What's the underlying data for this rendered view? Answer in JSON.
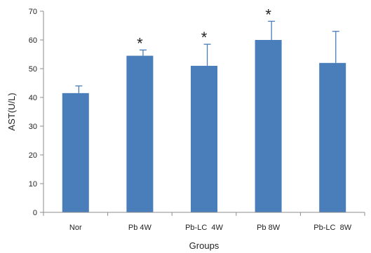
{
  "chart_data": {
    "type": "bar",
    "xlabel": "Groups",
    "ylabel": "AST(U/L)",
    "ylim": [
      0,
      70
    ],
    "yticks": [
      0,
      10,
      20,
      30,
      40,
      50,
      60,
      70
    ],
    "grid": false,
    "categories": [
      "Nor",
      "Pb 4W",
      "Pb-LC  4W",
      "Pb 8W",
      "Pb-LC  8W"
    ],
    "values": [
      41.5,
      54.5,
      51,
      60,
      52
    ],
    "error_bars": [
      2.5,
      2,
      7.5,
      6.5,
      11
    ],
    "significance": [
      "",
      "*",
      "*",
      "*",
      ""
    ],
    "bar_color": "#4a7ebb",
    "error_bar_color": "#4a7ebb",
    "axis_color": "#8c8c8c"
  }
}
